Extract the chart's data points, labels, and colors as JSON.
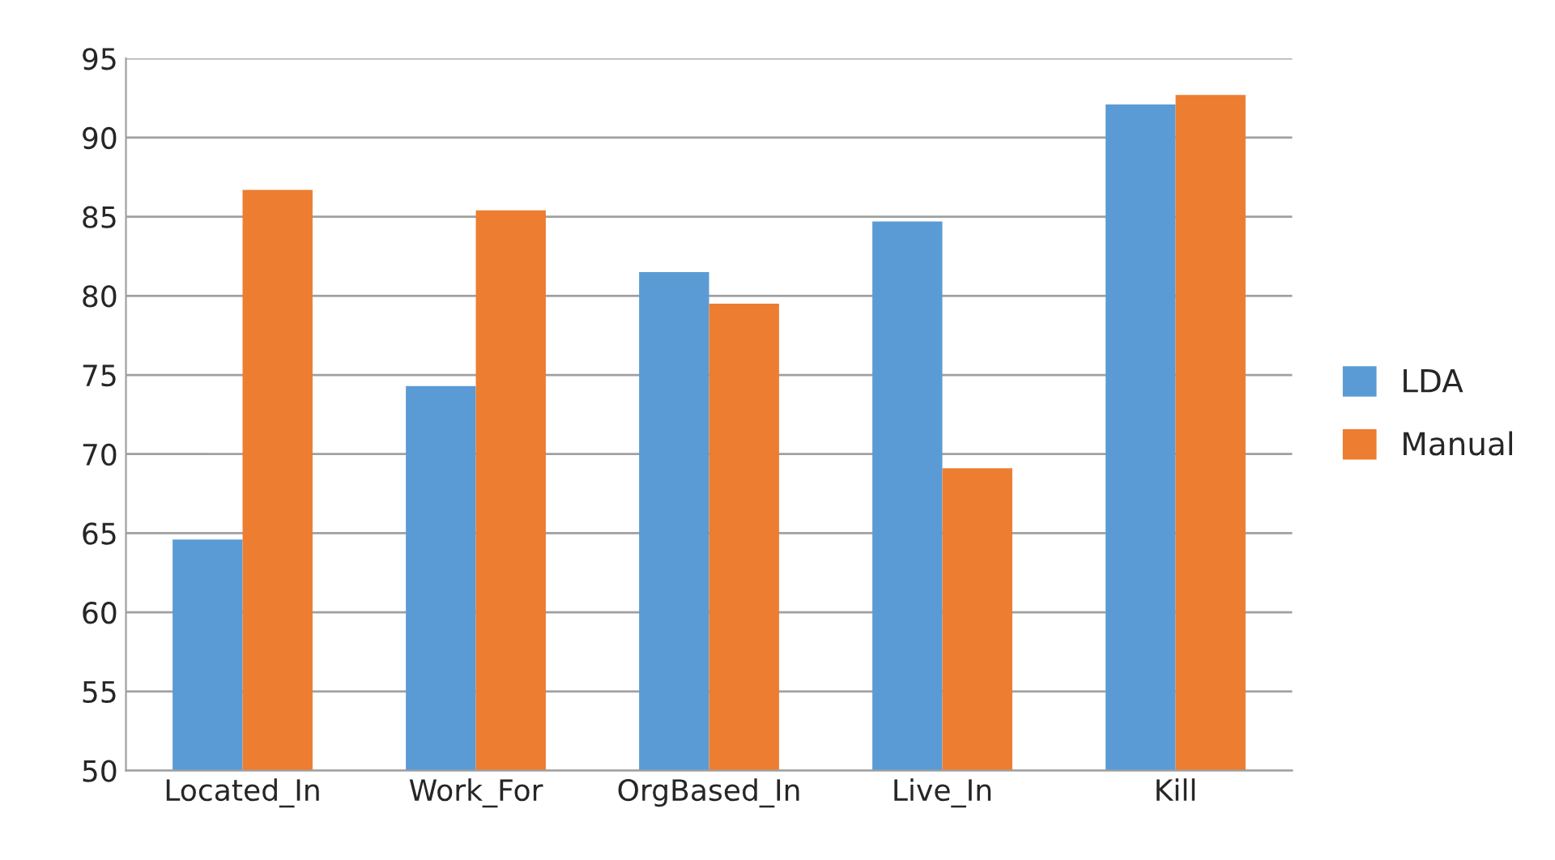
{
  "chart_data": {
    "type": "bar",
    "categories": [
      "Located_In",
      "Work_For",
      "OrgBased_In",
      "Live_In",
      "Kill"
    ],
    "series": [
      {
        "name": "LDA",
        "color": "#5b9bd5",
        "values": [
          64.6,
          74.3,
          81.5,
          84.7,
          92.1
        ]
      },
      {
        "name": "Manual",
        "color": "#ed7d31",
        "values": [
          86.7,
          85.4,
          79.5,
          69.1,
          92.7
        ]
      }
    ],
    "ylim": [
      50,
      95
    ],
    "yticks": [
      50,
      55,
      60,
      65,
      70,
      75,
      80,
      85,
      90,
      95
    ],
    "grid": "y",
    "legend": "right"
  }
}
